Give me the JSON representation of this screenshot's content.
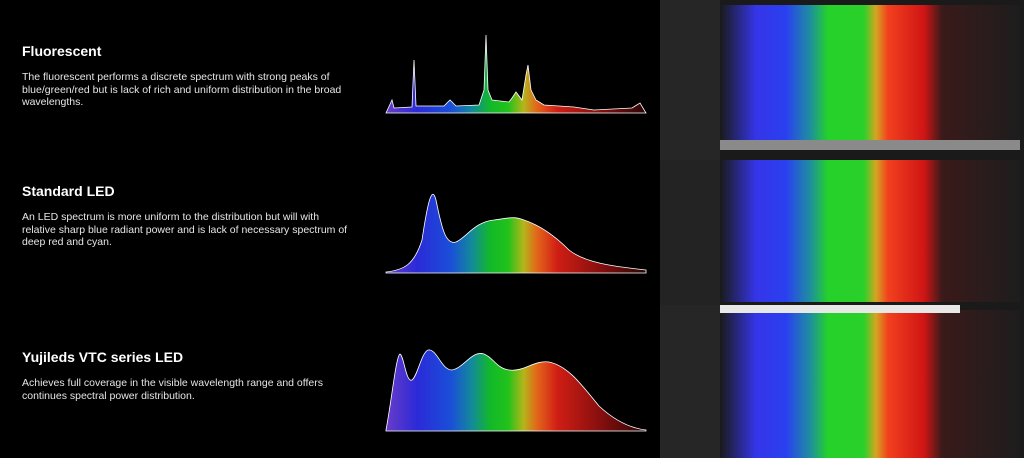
{
  "sections": [
    {
      "title": "Fluorescent",
      "description": "The fluorescent performs a discrete spectrum with strong peaks of blue/green/red but is lack of rich and uniform distribution in the broad wavelengths."
    },
    {
      "title": "Standard LED",
      "description": "An LED spectrum is more uniform to the distribution but will with relative sharp blue radiant power and is lack of necessary spectrum of deep red and cyan."
    },
    {
      "title": "Yujileds VTC series LED",
      "description": "Achieves full coverage in the visible wavelength range and offers continues spectral power distribution."
    }
  ],
  "icons": [
    "arrow-right-icon"
  ],
  "colors": {
    "background": "#000000",
    "text": "#ffffff",
    "violet": "#5a2bd6",
    "blue": "#1b2fd0",
    "green": "#17c21a",
    "red": "#d01515"
  }
}
